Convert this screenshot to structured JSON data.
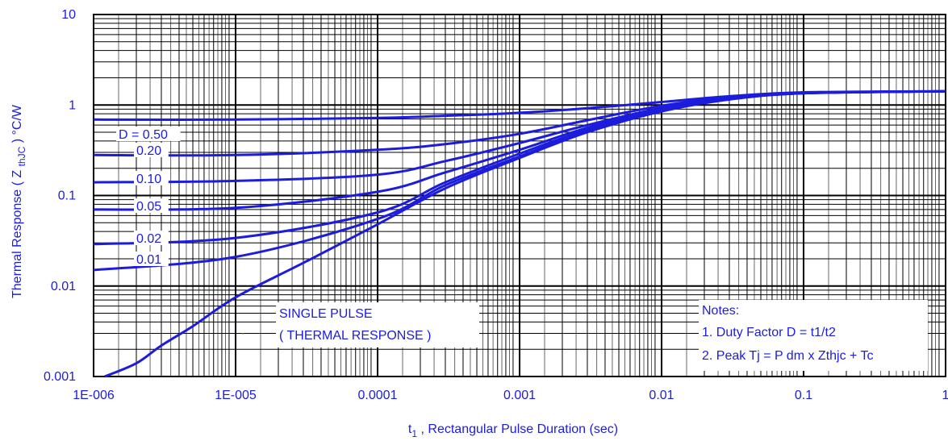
{
  "chart_data": {
    "type": "line",
    "x_scale": "log",
    "y_scale": "log",
    "xlim": [
      1e-06,
      1
    ],
    "ylim": [
      0.001,
      10
    ],
    "x_tick_labels": [
      "1E-006",
      "1E-005",
      "0.0001",
      "0.001",
      "0.01",
      "0.1",
      "1"
    ],
    "y_tick_labels": [
      "0.001",
      "0.01",
      "0.1",
      "1",
      "10"
    ],
    "ylabel": {
      "main": "Thermal Response ( Z ",
      "sub": "thJC",
      "tail": " ) °C/W"
    },
    "xlabel": {
      "main": "t",
      "sub": "1",
      "tail": " , Rectangular Pulse Duration (sec)"
    },
    "grid": true,
    "line_color": "#1c1cdc",
    "series": [
      {
        "name": "D = 0.50",
        "x": [
          1e-06,
          1e-05,
          0.0001,
          0.0003,
          0.001,
          0.003,
          0.01,
          0.03,
          0.1,
          1
        ],
        "y": [
          0.69,
          0.69,
          0.72,
          0.76,
          0.82,
          0.92,
          1.08,
          1.25,
          1.38,
          1.42
        ]
      },
      {
        "name": "0.20",
        "x": [
          1e-06,
          1e-05,
          0.0001,
          0.0003,
          0.001,
          0.003,
          0.01,
          0.03,
          0.1,
          1
        ],
        "y": [
          0.28,
          0.28,
          0.32,
          0.37,
          0.48,
          0.68,
          0.98,
          1.22,
          1.36,
          1.42
        ]
      },
      {
        "name": "0.10",
        "x": [
          1e-06,
          1e-05,
          0.0001,
          0.0003,
          0.001,
          0.003,
          0.01,
          0.03,
          0.1,
          1
        ],
        "y": [
          0.14,
          0.145,
          0.17,
          0.24,
          0.38,
          0.6,
          0.93,
          1.2,
          1.35,
          1.42
        ]
      },
      {
        "name": "0.05",
        "x": [
          1e-06,
          1e-05,
          0.0001,
          0.0003,
          0.001,
          0.003,
          0.01,
          0.03,
          0.1,
          1
        ],
        "y": [
          0.07,
          0.073,
          0.11,
          0.18,
          0.32,
          0.56,
          0.9,
          1.18,
          1.35,
          1.42
        ]
      },
      {
        "name": "0.02",
        "x": [
          1e-06,
          1e-05,
          0.0001,
          0.0003,
          0.001,
          0.003,
          0.01,
          0.03,
          0.1,
          1
        ],
        "y": [
          0.029,
          0.034,
          0.065,
          0.14,
          0.29,
          0.53,
          0.88,
          1.17,
          1.35,
          1.42
        ]
      },
      {
        "name": "0.01",
        "x": [
          1e-06,
          1e-05,
          0.0001,
          0.0003,
          0.001,
          0.003,
          0.01,
          0.03,
          0.1,
          1
        ],
        "y": [
          0.015,
          0.021,
          0.055,
          0.13,
          0.27,
          0.51,
          0.86,
          1.16,
          1.35,
          1.42
        ]
      },
      {
        "name": "SINGLE PULSE",
        "x": [
          1.2e-06,
          2e-06,
          3e-06,
          5e-06,
          1e-05,
          3e-05,
          0.0001,
          0.0003,
          0.001,
          0.003,
          0.01,
          0.03,
          0.1,
          1
        ],
        "y": [
          0.001,
          0.0014,
          0.0022,
          0.0036,
          0.0075,
          0.018,
          0.048,
          0.12,
          0.26,
          0.5,
          0.85,
          1.15,
          1.35,
          1.42
        ]
      }
    ],
    "curve_labels": [
      "D = 0.50",
      "0.20",
      "0.10",
      "0.05",
      "0.02",
      "0.01"
    ],
    "annotations": {
      "single_pulse": [
        "SINGLE PULSE",
        "( THERMAL RESPONSE )"
      ],
      "notes": [
        "Notes:",
        "1. Duty Factor D = t1/t2",
        "2. Peak Tj = P dm x Zthjc + Tc"
      ]
    }
  }
}
